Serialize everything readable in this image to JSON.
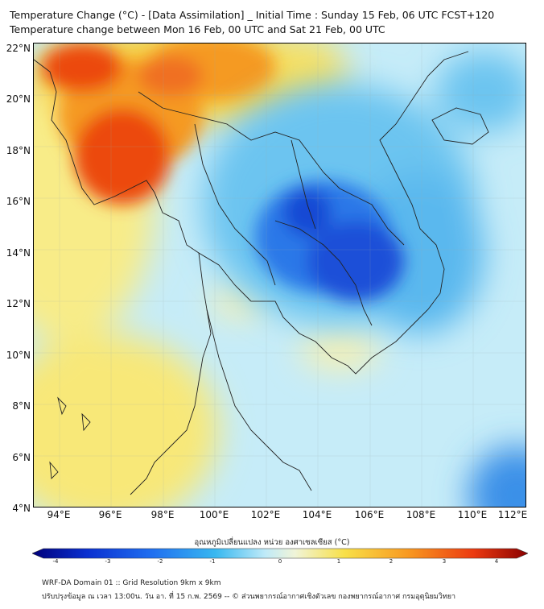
{
  "title_line1": "Temperature Change (°C) - [Data Assimilation] _ Initial Time : Sunday 15 Feb, 06 UTC FCST+120",
  "title_line2": "Temperature change between Mon 16 Feb, 00 UTC and Sat 21 Feb, 00 UTC",
  "map": {
    "lat_range": [
      4,
      22
    ],
    "lon_range": [
      93,
      112
    ],
    "lat_labels": [
      "22°N",
      "20°N",
      "18°N",
      "16°N",
      "14°N",
      "12°N",
      "10°N",
      "8°N",
      "6°N",
      "4°N"
    ],
    "lon_labels": [
      "94°E",
      "96°E",
      "98°E",
      "100°E",
      "102°E",
      "104°E",
      "106°E",
      "108°E",
      "110°E",
      "112°E"
    ]
  },
  "colorbar": {
    "title": "อุณหภูมิเปลี่ยนแปลง หน่วย องศาเซลเซียส (°C)",
    "tick_labels": [
      "-4",
      "-3",
      "-2",
      "-1",
      "0",
      "1",
      "2",
      "3",
      "4"
    ],
    "range": [
      -4,
      4
    ],
    "colors": [
      "#00007a",
      "#0a2fd0",
      "#1f6ef0",
      "#38b8f0",
      "#bfeaf8",
      "#f0f4d8",
      "#f8e048",
      "#f89820",
      "#ec3a10",
      "#8a0000"
    ]
  },
  "footer_line1": "WRF-DA Domain 01 :: Grid Resolution 9km x 9km",
  "footer_line2": "ปรับปรุงข้อมูล ณ เวลา 13:00น. วัน อา. ที่ 15 ก.พ. 2569 -- © ส่วนพยากรณ์อากาศเชิงตัวเลข กองพยากรณ์อากาศ กรมอุตุนิยมวิทยา"
}
